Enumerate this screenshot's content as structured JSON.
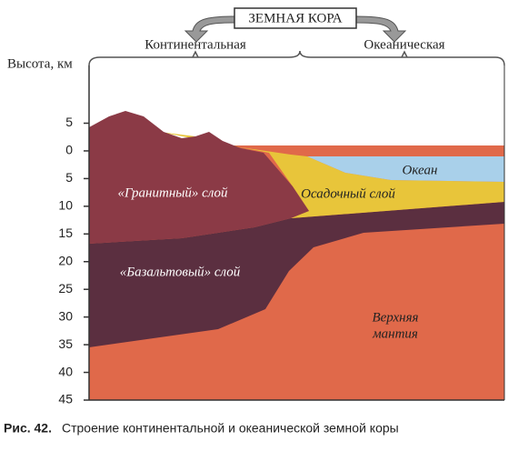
{
  "header": {
    "title": "ЗЕМНАЯ КОРА",
    "left": "Континентальная",
    "right": "Океаническая"
  },
  "axis": {
    "label": "Высота, км",
    "ticks": [
      "5",
      "0",
      "5",
      "10",
      "15",
      "20",
      "25",
      "30",
      "35",
      "40",
      "45"
    ]
  },
  "layers": {
    "granite": "«Гранитный» слой",
    "sediment": "Осадочный слой",
    "ocean": "Океан",
    "basalt": "«Базальтовый» слой",
    "mantle": [
      "Верхняя",
      "мантия"
    ]
  },
  "caption": {
    "number": "Рис. 42.",
    "text": "Строение континентальной и океанической земной коры"
  }
}
